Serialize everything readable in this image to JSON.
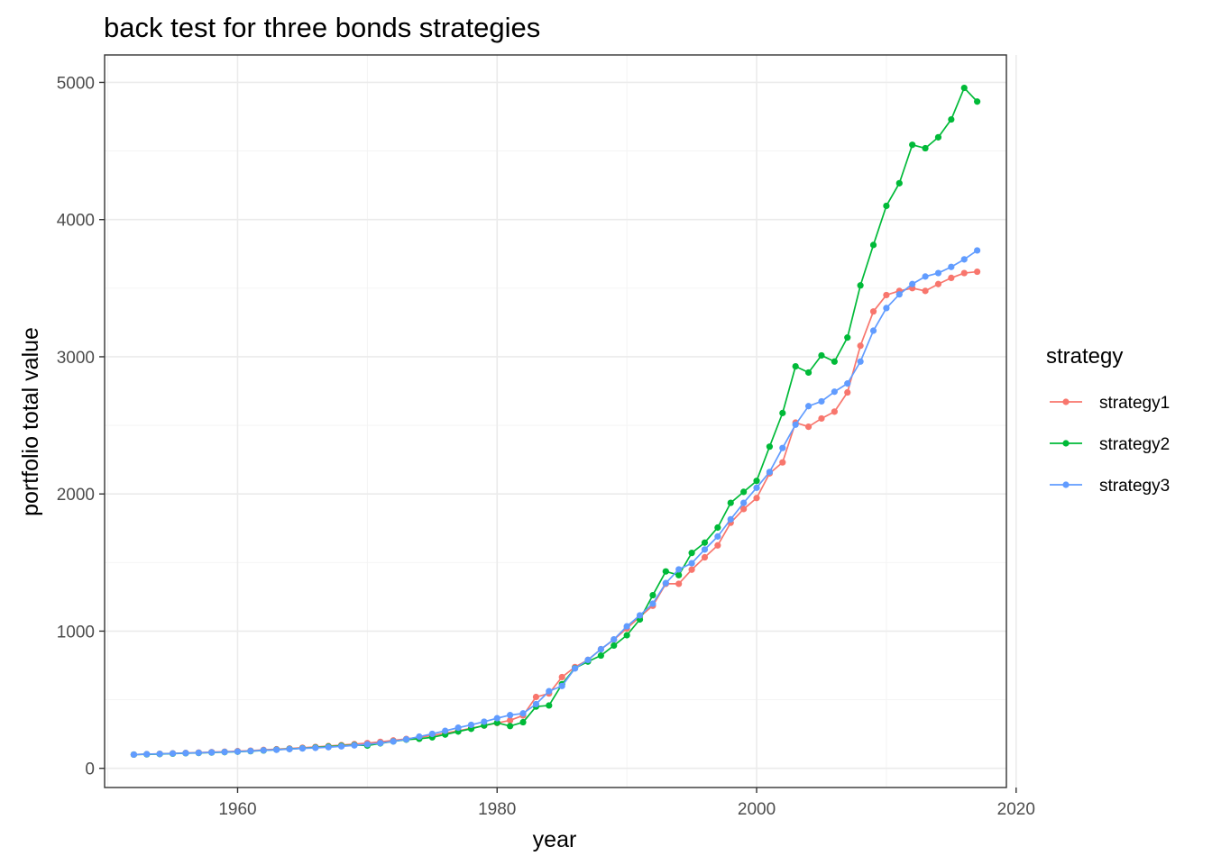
{
  "chart_data": {
    "type": "line",
    "title": "back test for three bonds strategies",
    "xlabel": "year",
    "ylabel": "portfolio total value",
    "xlim": [
      1949.75,
      2019.25
    ],
    "ylim": [
      -140,
      5200
    ],
    "xticks": [
      1960,
      1980,
      2000,
      2020
    ],
    "xtick_labels": [
      "1960",
      "1980",
      "2000",
      "2020"
    ],
    "yticks": [
      0,
      1000,
      2000,
      3000,
      4000,
      5000
    ],
    "ytick_labels": [
      "0",
      "1000",
      "2000",
      "3000",
      "4000",
      "5000"
    ],
    "grid": true,
    "legend": {
      "title": "strategy",
      "position": "right"
    },
    "x": [
      1952,
      1953,
      1954,
      1955,
      1956,
      1957,
      1958,
      1959,
      1960,
      1961,
      1962,
      1963,
      1964,
      1965,
      1966,
      1967,
      1968,
      1969,
      1970,
      1971,
      1972,
      1973,
      1974,
      1975,
      1976,
      1977,
      1978,
      1979,
      1980,
      1981,
      1982,
      1983,
      1984,
      1985,
      1986,
      1987,
      1988,
      1989,
      1990,
      1991,
      1992,
      1993,
      1994,
      1995,
      1996,
      1997,
      1998,
      1999,
      2000,
      2001,
      2002,
      2003,
      2004,
      2005,
      2006,
      2007,
      2008,
      2009,
      2010,
      2011,
      2012,
      2013,
      2014,
      2015,
      2016,
      2017
    ],
    "series": [
      {
        "name": "strategy1",
        "color": "#F8766D",
        "values": [
          100,
          103,
          106,
          109,
          112,
          115,
          118,
          121,
          125,
          129,
          134,
          139,
          144,
          150,
          156,
          162,
          169,
          176,
          184,
          193,
          203,
          214,
          226,
          239,
          256,
          273,
          292,
          311,
          330,
          350,
          385,
          520,
          545,
          665,
          738,
          790,
          868,
          938,
          1020,
          1105,
          1185,
          1345,
          1345,
          1448,
          1538,
          1625,
          1790,
          1890,
          1970,
          2150,
          2230,
          2520,
          2490,
          2550,
          2600,
          2740,
          3080,
          3330,
          3450,
          3480,
          3500,
          3480,
          3530,
          3575,
          3610,
          3620
        ]
      },
      {
        "name": "strategy2",
        "color": "#00BA38",
        "values": [
          100,
          102,
          104,
          107,
          110,
          112,
          115,
          118,
          121,
          125,
          130,
          136,
          141,
          146,
          152,
          158,
          164,
          170,
          166,
          182,
          196,
          209,
          215,
          226,
          246,
          268,
          288,
          312,
          332,
          308,
          336,
          450,
          458,
          613,
          730,
          778,
          822,
          895,
          970,
          1085,
          1262,
          1435,
          1408,
          1570,
          1645,
          1755,
          1935,
          2015,
          2095,
          2345,
          2590,
          2930,
          2885,
          3010,
          2965,
          3140,
          3520,
          3815,
          4100,
          4265,
          4545,
          4520,
          4600,
          4730,
          4960,
          4860
        ]
      },
      {
        "name": "strategy3",
        "color": "#619CFF",
        "values": [
          100,
          103,
          105,
          108,
          111,
          113,
          116,
          119,
          122,
          126,
          131,
          135,
          140,
          145,
          149,
          154,
          160,
          167,
          175,
          184,
          196,
          211,
          231,
          251,
          273,
          296,
          317,
          340,
          365,
          388,
          400,
          468,
          562,
          600,
          728,
          790,
          868,
          940,
          1035,
          1115,
          1200,
          1350,
          1450,
          1495,
          1595,
          1690,
          1815,
          1935,
          2045,
          2160,
          2335,
          2505,
          2640,
          2675,
          2745,
          2805,
          2965,
          3190,
          3355,
          3455,
          3530,
          3585,
          3610,
          3655,
          3710,
          3775
        ]
      }
    ]
  }
}
